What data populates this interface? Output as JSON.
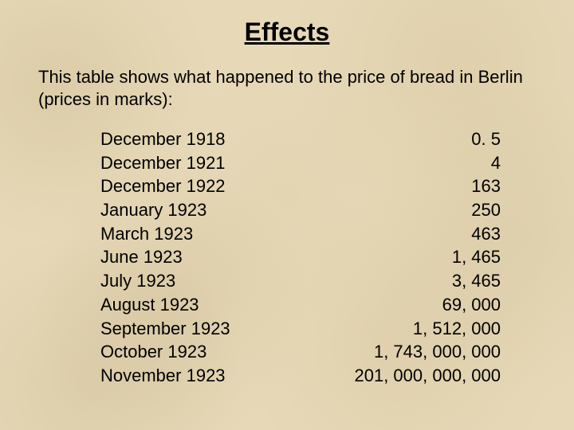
{
  "title": "Effects",
  "intro": "This table shows what happened to the price of bread in Berlin (prices in marks):",
  "table": {
    "rows": [
      {
        "date": "December 1918",
        "price": "0. 5"
      },
      {
        "date": "December 1921",
        "price": "4"
      },
      {
        "date": "December 1922",
        "price": "163"
      },
      {
        "date": "January 1923",
        "price": "250"
      },
      {
        "date": "March 1923",
        "price": "463"
      },
      {
        "date": "June 1923",
        "price": "1, 465"
      },
      {
        "date": "July 1923",
        "price": "3, 465"
      },
      {
        "date": "August 1923",
        "price": "69, 000"
      },
      {
        "date": "September 1923",
        "price": "1, 512, 000"
      },
      {
        "date": "October 1923",
        "price": "1, 743, 000, 000"
      },
      {
        "date": "November 1923",
        "price": "201, 000, 000, 000"
      }
    ]
  },
  "style": {
    "background_color": "#e7d9b8",
    "text_color": "#000000",
    "title_fontsize": 32,
    "body_fontsize": 22,
    "font_family": "Arial"
  }
}
